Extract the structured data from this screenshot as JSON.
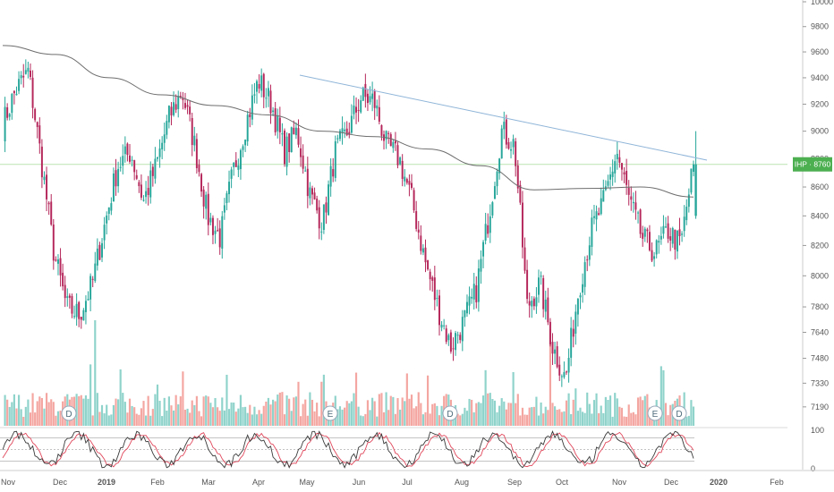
{
  "chart_data": {
    "type": "candlestick",
    "symbol": "IHP",
    "last_price": 8760,
    "last_price_label": "IHP · 8760",
    "y_ticks": [
      7190,
      7330,
      7480,
      7640,
      7800,
      8000,
      8200,
      8400,
      8600,
      8800,
      9000,
      9200,
      9400,
      9600,
      9800,
      10000
    ],
    "x_ticks": [
      "Nov",
      "Dec",
      "2019",
      "Feb",
      "Mar",
      "Apr",
      "May",
      "Jun",
      "Jul",
      "Aug",
      "Sep",
      "Oct",
      "Nov",
      "Dec",
      "2020",
      "Feb"
    ],
    "y_log_scale": true,
    "y_range": [
      7080,
      10000
    ],
    "grid": false,
    "price_series": {
      "name": "IHP",
      "anchors": [
        {
          "month": "Nov",
          "price": 9050
        },
        {
          "month": "Nov",
          "price": 9300
        },
        {
          "month": "Nov",
          "price": 9450
        },
        {
          "month": "Dec",
          "price": 8800
        },
        {
          "month": "Dec",
          "price": 8150
        },
        {
          "month": "Dec",
          "price": 7800
        },
        {
          "month": "Dec",
          "price": 7750
        },
        {
          "month": "Dec",
          "price": 7950
        },
        {
          "month": "2019",
          "price": 8350
        },
        {
          "month": "2019",
          "price": 8750
        },
        {
          "month": "Feb",
          "price": 8850
        },
        {
          "month": "Feb",
          "price": 8500
        },
        {
          "month": "Feb",
          "price": 8750
        },
        {
          "month": "Mar",
          "price": 9100
        },
        {
          "month": "Mar",
          "price": 9300
        },
        {
          "month": "Mar",
          "price": 8900
        },
        {
          "month": "Apr",
          "price": 8400
        },
        {
          "month": "Apr",
          "price": 8250
        },
        {
          "month": "Apr",
          "price": 8700
        },
        {
          "month": "Apr",
          "price": 9050
        },
        {
          "month": "May",
          "price": 9380
        },
        {
          "month": "May",
          "price": 9200
        },
        {
          "month": "May",
          "price": 8850
        },
        {
          "month": "May",
          "price": 9000
        },
        {
          "month": "Jun",
          "price": 8550
        },
        {
          "month": "Jun",
          "price": 8350
        },
        {
          "month": "Jun",
          "price": 8850
        },
        {
          "month": "Jun",
          "price": 9000
        },
        {
          "month": "Jul",
          "price": 9250
        },
        {
          "month": "Jul",
          "price": 9230
        },
        {
          "month": "Jul",
          "price": 8900
        },
        {
          "month": "Jul",
          "price": 8800
        },
        {
          "month": "Aug",
          "price": 8500
        },
        {
          "month": "Aug",
          "price": 8100
        },
        {
          "month": "Aug",
          "price": 7800
        },
        {
          "month": "Aug",
          "price": 7550
        },
        {
          "month": "Sep",
          "price": 7700
        },
        {
          "month": "Sep",
          "price": 7900
        },
        {
          "month": "Sep",
          "price": 8400
        },
        {
          "month": "Sep",
          "price": 9000
        },
        {
          "month": "Sep",
          "price": 8900
        },
        {
          "month": "Oct",
          "price": 7800
        },
        {
          "month": "Oct",
          "price": 7950
        },
        {
          "month": "Oct",
          "price": 7550
        },
        {
          "month": "Oct",
          "price": 7350
        },
        {
          "month": "Oct",
          "price": 7900
        },
        {
          "month": "Nov",
          "price": 8300
        },
        {
          "month": "Nov",
          "price": 8500
        },
        {
          "month": "Nov",
          "price": 8850
        },
        {
          "month": "Nov",
          "price": 8500
        },
        {
          "month": "Nov",
          "price": 8250
        },
        {
          "month": "Dec",
          "price": 8150
        },
        {
          "month": "Dec",
          "price": 8300
        },
        {
          "month": "Dec",
          "price": 8200
        },
        {
          "month": "Dec",
          "price": 8760
        }
      ]
    },
    "moving_average": {
      "points": [
        {
          "month": "Nov",
          "price": 9650
        },
        {
          "month": "Dec",
          "price": 9580
        },
        {
          "month": "2019",
          "price": 9400
        },
        {
          "month": "Feb",
          "price": 9270
        },
        {
          "month": "Mar",
          "price": 9190
        },
        {
          "month": "Apr",
          "price": 9120
        },
        {
          "month": "May",
          "price": 9000
        },
        {
          "month": "Jun",
          "price": 8960
        },
        {
          "month": "Jul",
          "price": 8870
        },
        {
          "month": "Aug",
          "price": 8750
        },
        {
          "month": "Sep",
          "price": 8580
        },
        {
          "month": "Oct",
          "price": 8590
        },
        {
          "month": "Nov",
          "price": 8600
        },
        {
          "month": "Dec",
          "price": 8530
        }
      ]
    },
    "trendline": {
      "from": {
        "month": "May",
        "price": 9420
      },
      "to": {
        "month": "Dec",
        "price": 8790
      }
    },
    "horizontal_level": 8760,
    "event_markers": [
      {
        "label": "D",
        "month": "Dec"
      },
      {
        "label": "E",
        "month": "May"
      },
      {
        "label": "D",
        "month": "Jul"
      },
      {
        "label": "E",
        "month": "Dec"
      },
      {
        "label": "D",
        "month": "Dec"
      }
    ],
    "oscillator": {
      "y_ticks": [
        100,
        0
      ],
      "levels": [
        80,
        50,
        20
      ]
    },
    "colors": {
      "up": "#26a69a",
      "down": "#b5275a",
      "volume_up": "#8fd3cb",
      "volume_down": "#f4a6a1",
      "ma": "#6d6d6d",
      "trendline": "#8fb5d8",
      "level": "#b9e4b0",
      "price_tag": "#4caf50",
      "osc_k": "#3a3a3a",
      "osc_d": "#e0475b",
      "axis": "#555555"
    }
  }
}
